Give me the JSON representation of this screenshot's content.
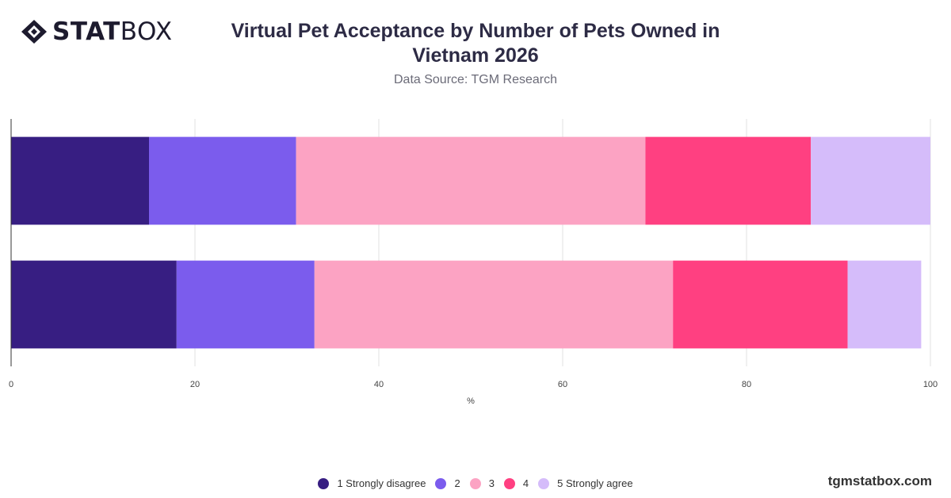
{
  "logo": {
    "text_bold": "STAT",
    "text_light": "BOX"
  },
  "footer": {
    "site": "tgmstatbox.com"
  },
  "chart_data": {
    "type": "bar",
    "orientation": "horizontal",
    "stacked": true,
    "title": "Virtual Pet Acceptance by Number of Pets Owned in Vietnam 2026",
    "subtitle": "Data Source: TGM Research",
    "xlabel": "%",
    "ylabel": "",
    "xlim": [
      0,
      100
    ],
    "xticks": [
      0,
      20,
      40,
      60,
      80,
      100
    ],
    "grid": true,
    "legend_position": "bottom",
    "categories": [
      "",
      ""
    ],
    "series": [
      {
        "name": "1 Strongly disagree",
        "color": "#371e82",
        "values": [
          15,
          18
        ]
      },
      {
        "name": "2",
        "color": "#7b5ced",
        "values": [
          16,
          15
        ]
      },
      {
        "name": "3",
        "color": "#fca3c3",
        "values": [
          38,
          39
        ]
      },
      {
        "name": "4",
        "color": "#ff4081",
        "values": [
          18,
          19
        ]
      },
      {
        "name": "5 Strongly agree",
        "color": "#d5bcfa",
        "values": [
          13,
          8
        ]
      }
    ]
  }
}
